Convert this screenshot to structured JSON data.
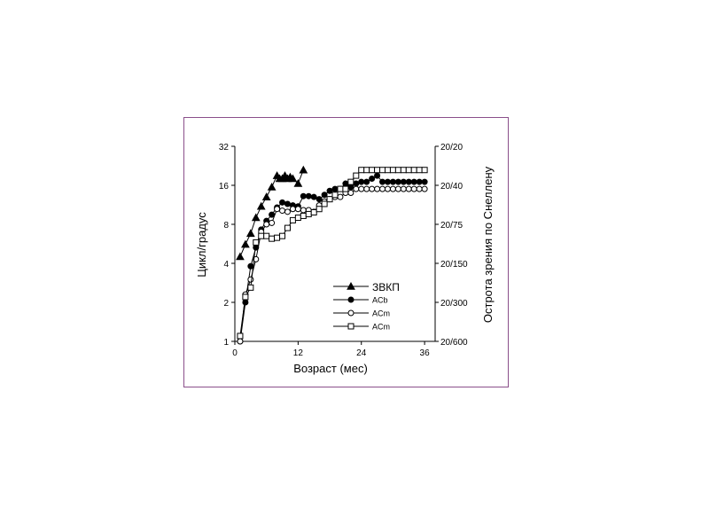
{
  "chart_data": {
    "type": "line",
    "xlabel": "Возраст (мес)",
    "ylabel": "Цикл/градус",
    "ylabel_right": "Острота зрения по Снеллену",
    "x_ticks": [
      "0",
      "12",
      "24",
      "36"
    ],
    "x_tick_values": [
      0,
      12,
      24,
      36
    ],
    "y_ticks": [
      "1",
      "2",
      "4",
      "8",
      "16",
      "32"
    ],
    "y_tick_values": [
      1,
      2,
      4,
      8,
      16,
      32
    ],
    "y_scale": "log2",
    "y2_ticks": [
      "20/600",
      "20/300",
      "20/150",
      "20/75",
      "20/40",
      "20/20"
    ],
    "y2_tick_values": [
      1,
      2,
      4,
      8,
      16,
      32
    ],
    "xlim": [
      0,
      38
    ],
    "ylim": [
      1,
      32
    ],
    "legend_position": "inside lower-right",
    "series": [
      {
        "name": "ЗВКП",
        "marker": "filled-triangle",
        "x": [
          1,
          2,
          3,
          4,
          5,
          6,
          7,
          8,
          8.5,
          9,
          9.5,
          10,
          10.5,
          11,
          12,
          13
        ],
        "y": [
          4.5,
          5.6,
          6.8,
          9,
          11,
          13,
          15.5,
          19,
          18,
          18,
          19,
          18,
          18.5,
          18,
          16.5,
          21
        ]
      },
      {
        "name": "ACb",
        "marker": "filled-circle",
        "x": [
          1,
          2,
          3,
          4,
          5,
          6,
          7,
          8,
          9,
          10,
          11,
          12,
          13,
          14,
          15,
          16,
          17,
          18,
          19,
          20,
          21,
          22,
          23,
          24,
          25,
          26,
          27,
          28,
          29,
          30,
          31,
          32,
          33,
          34,
          35,
          36
        ],
        "y": [
          1,
          2,
          3.8,
          5.3,
          7.3,
          8.5,
          9.5,
          10.8,
          11.8,
          11.5,
          11.2,
          11,
          13.2,
          13.2,
          13,
          12.5,
          13.5,
          14.5,
          15,
          15,
          16.5,
          15.5,
          16.5,
          17,
          17,
          18,
          19,
          17,
          17,
          17,
          17,
          17,
          17,
          17,
          17,
          17
        ]
      },
      {
        "name": "ACm",
        "marker": "open-circle",
        "x": [
          1,
          2,
          3,
          4,
          5,
          6,
          7,
          8,
          9,
          10,
          11,
          12,
          13,
          14,
          15,
          16,
          17,
          18,
          19,
          20,
          21,
          22,
          23,
          24,
          25,
          26,
          27,
          28,
          29,
          30,
          31,
          32,
          33,
          34,
          35,
          36
        ],
        "y": [
          1,
          2.3,
          3,
          4.3,
          7,
          8,
          8.2,
          10.5,
          10.2,
          10,
          10.5,
          10.5,
          10.3,
          10.3,
          10,
          11.2,
          12,
          12.5,
          13,
          13,
          14,
          14,
          15,
          15,
          15,
          15,
          15,
          15,
          15,
          15,
          15,
          15,
          15,
          15,
          15,
          15
        ]
      },
      {
        "name": "ACm",
        "marker": "open-square",
        "x": [
          1,
          2,
          3,
          4,
          5,
          6,
          7,
          8,
          9,
          10,
          11,
          12,
          13,
          14,
          15,
          16,
          17,
          18,
          19,
          20,
          21,
          22,
          23,
          24,
          25,
          26,
          27,
          28,
          29,
          30,
          31,
          32,
          33,
          34,
          35,
          36
        ],
        "y": [
          1.1,
          2.2,
          2.6,
          5.8,
          6.5,
          6.5,
          6.2,
          6.3,
          6.5,
          7.5,
          8.6,
          9.0,
          9.3,
          9.6,
          9.9,
          10.5,
          11.5,
          12.5,
          13.5,
          15,
          15,
          17,
          19,
          21,
          21,
          21,
          21,
          21,
          21,
          21,
          21,
          21,
          21,
          21,
          21,
          21
        ]
      }
    ]
  }
}
